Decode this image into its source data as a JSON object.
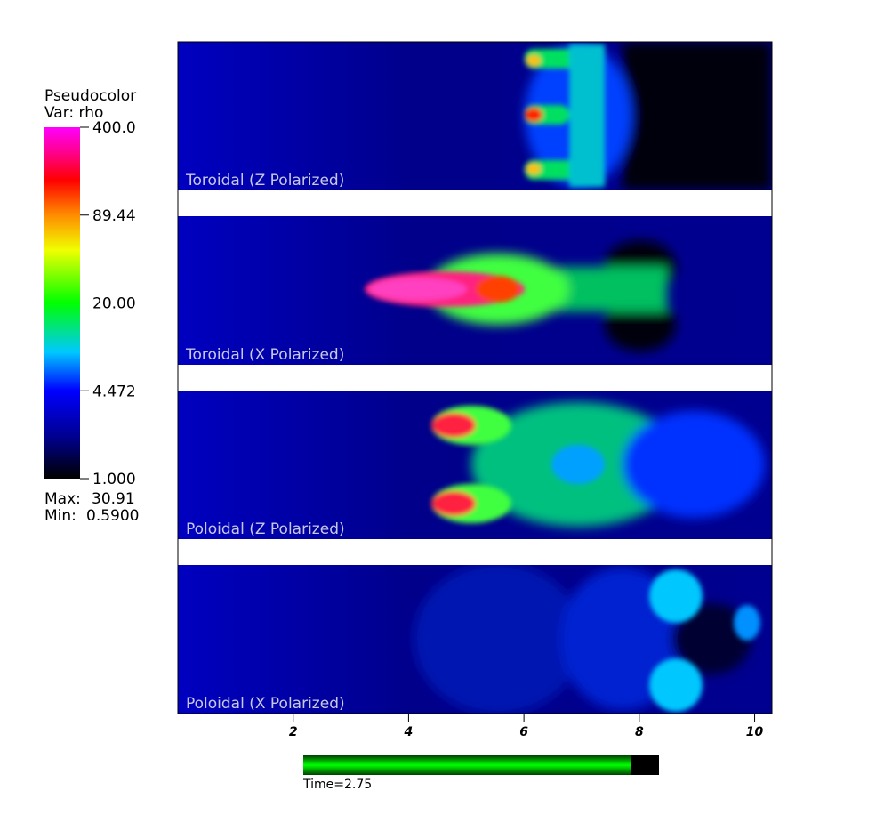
{
  "legend": {
    "title": "Pseudocolor",
    "variable": "Var: rho",
    "scale": "log",
    "range": [
      1,
      400
    ],
    "ticks": [
      {
        "value": 400,
        "label": "400.0"
      },
      {
        "value": 89.44,
        "label": "89.44"
      },
      {
        "value": 20,
        "label": "20.00"
      },
      {
        "value": 4.472,
        "label": "4.472"
      },
      {
        "value": 1,
        "label": "1.000"
      }
    ],
    "max_label": "Max:",
    "max": 30.91,
    "min_label": "Min:",
    "min": {
      "value": 0.59,
      "label": "0.5900"
    }
  },
  "panels": [
    {
      "title": "Toroidal (Z Polarized)"
    },
    {
      "title": "Toroidal (X Polarized)"
    },
    {
      "title": "Poloidal (Z Polarized)"
    },
    {
      "title": "Poloidal (X Polarized)"
    }
  ],
  "x_axis": {
    "xlim": [
      0,
      10.3
    ],
    "xticks": [
      2,
      4,
      6,
      8,
      10
    ]
  },
  "time": {
    "label": "Time=2.75",
    "progress": 0.92
  }
}
